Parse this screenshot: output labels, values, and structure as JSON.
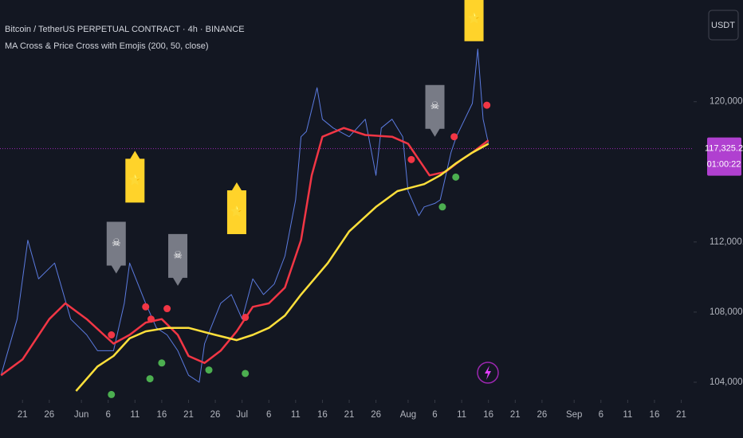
{
  "header": {
    "title": "Bitcoin / TetherUS PERPETUAL CONTRACT · 4h · BINANCE",
    "indicator": "MA Cross & Price Cross with Emojis (200, 50, close)",
    "currency": "USDT"
  },
  "chart_data": {
    "type": "line",
    "xlim": [
      136.8,
      266.3
    ],
    "ylim": [
      103000,
      125800
    ],
    "xticks": [
      {
        "value": 141,
        "label": "21"
      },
      {
        "value": 146,
        "label": "26"
      },
      {
        "value": 152,
        "label": "Jun"
      },
      {
        "value": 157,
        "label": "6"
      },
      {
        "value": 162,
        "label": "11"
      },
      {
        "value": 167,
        "label": "16"
      },
      {
        "value": 172,
        "label": "21"
      },
      {
        "value": 177,
        "label": "26"
      },
      {
        "value": 182,
        "label": "Jul"
      },
      {
        "value": 187,
        "label": "6"
      },
      {
        "value": 192,
        "label": "11"
      },
      {
        "value": 197,
        "label": "16"
      },
      {
        "value": 202,
        "label": "21"
      },
      {
        "value": 207,
        "label": "26"
      },
      {
        "value": 213,
        "label": "Aug"
      },
      {
        "value": 218,
        "label": "6"
      },
      {
        "value": 223,
        "label": "11"
      },
      {
        "value": 228,
        "label": "16"
      },
      {
        "value": 233,
        "label": "21"
      },
      {
        "value": 238,
        "label": "26"
      },
      {
        "value": 244,
        "label": "Sep"
      },
      {
        "value": 249,
        "label": "6"
      },
      {
        "value": 254,
        "label": "11"
      },
      {
        "value": 259,
        "label": "16"
      },
      {
        "value": 264,
        "label": "21"
      }
    ],
    "yticks": [
      {
        "value": 104000,
        "label": "104,000.0"
      },
      {
        "value": 108000,
        "label": "108,000.0"
      },
      {
        "value": 112000,
        "label": "112,000.0"
      },
      {
        "value": 120000,
        "label": "120,000.0"
      }
    ],
    "series": [
      {
        "color": "#5b7be0",
        "x": [
          137,
          140,
          142,
          144,
          147,
          150,
          153,
          155,
          158,
          160,
          161,
          164,
          166,
          168,
          170,
          172,
          174,
          175,
          178,
          180,
          182,
          184,
          186,
          188,
          190,
          192,
          193,
          194,
          196,
          197,
          199,
          202,
          205,
          207,
          208,
          210,
          212,
          213,
          215,
          216,
          218,
          219,
          221,
          222,
          225,
          226,
          227,
          228
        ],
        "values": [
          104400,
          107600,
          112100,
          109900,
          110800,
          107600,
          106700,
          105800,
          105800,
          108500,
          110800,
          108500,
          107100,
          106700,
          105800,
          104400,
          104000,
          106200,
          108500,
          109000,
          107600,
          109900,
          109000,
          109600,
          111200,
          114400,
          118000,
          118300,
          120800,
          119000,
          118500,
          118000,
          119000,
          115800,
          118500,
          119000,
          118000,
          114900,
          113500,
          114000,
          114200,
          114400,
          117100,
          118000,
          119900,
          123000,
          119000,
          117600
        ]
      },
      {
        "color": "#f23645",
        "x": [
          137,
          141,
          146,
          149,
          153,
          158,
          161,
          164,
          167,
          170,
          172,
          175,
          178,
          181,
          184,
          187,
          190,
          193,
          195,
          197,
          201,
          205,
          210,
          213,
          215,
          217,
          220,
          223,
          225,
          228
        ],
        "values": [
          104400,
          105300,
          107600,
          108500,
          107600,
          106200,
          106700,
          107400,
          107600,
          106700,
          105500,
          105100,
          105800,
          106900,
          108300,
          108500,
          109400,
          112100,
          115800,
          118000,
          118500,
          118100,
          118000,
          117600,
          116700,
          115800,
          116000,
          116700,
          117100,
          117800
        ]
      },
      {
        "color": "#ffe03b",
        "x": [
          151,
          155,
          158,
          161,
          164,
          168,
          172,
          177,
          181,
          184,
          187,
          190,
          193,
          198,
          202,
          207,
          211,
          216,
          219,
          222,
          225,
          228
        ],
        "values": [
          103500,
          104900,
          105500,
          106500,
          106900,
          107100,
          107100,
          106700,
          106400,
          106700,
          107100,
          107800,
          109000,
          110800,
          112600,
          114000,
          114900,
          115300,
          115800,
          116500,
          117100,
          117600
        ]
      }
    ],
    "signals": [
      {
        "x": 157.6,
        "y": 106700,
        "color": "#f23645"
      },
      {
        "x": 164,
        "y": 108300,
        "color": "#f23645"
      },
      {
        "x": 165,
        "y": 107600,
        "color": "#f23645"
      },
      {
        "x": 168,
        "y": 108200,
        "color": "#f23645"
      },
      {
        "x": 182.6,
        "y": 107700,
        "color": "#f23645"
      },
      {
        "x": 213.6,
        "y": 116700,
        "color": "#f23645"
      },
      {
        "x": 221.6,
        "y": 118000,
        "color": "#f23645"
      },
      {
        "x": 227.7,
        "y": 119800,
        "color": "#f23645"
      },
      {
        "x": 157.6,
        "y": 103300,
        "color": "#4caf50"
      },
      {
        "x": 164.8,
        "y": 104200,
        "color": "#4caf50"
      },
      {
        "x": 167,
        "y": 105100,
        "color": "#4caf50"
      },
      {
        "x": 175.8,
        "y": 104700,
        "color": "#4caf50"
      },
      {
        "x": 182.6,
        "y": 104500,
        "color": "#4caf50"
      },
      {
        "x": 219.4,
        "y": 114000,
        "color": "#4caf50"
      },
      {
        "x": 221.9,
        "y": 115700,
        "color": "#4caf50"
      }
    ],
    "flags": [
      {
        "x": 162,
        "y": 117200,
        "label": "⭐",
        "color": "#ffd32a"
      },
      {
        "x": 181,
        "y": 115400,
        "label": "⭐",
        "color": "#ffd32a"
      },
      {
        "x": 225.3,
        "y": 126400,
        "label": "⭐",
        "color": "#ffd32a"
      },
      {
        "x": 158.5,
        "y": 110200,
        "label": "☠",
        "color": "#787b86"
      },
      {
        "x": 170,
        "y": 109500,
        "label": "☠",
        "color": "#787b86"
      },
      {
        "x": 218,
        "y": 118000,
        "label": "☠",
        "color": "#787b86"
      }
    ],
    "last_price": {
      "value": 117325.2,
      "label": "117,325.2"
    },
    "countdown": "01:00:22"
  }
}
